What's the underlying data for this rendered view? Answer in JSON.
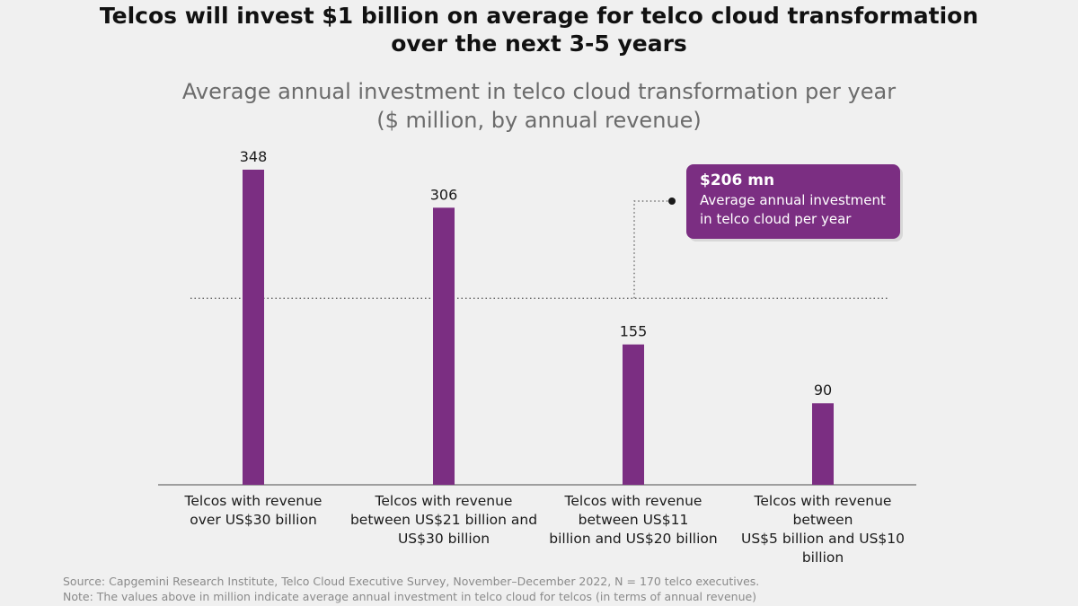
{
  "title_line1": "Telcos will invest $1 billion on average for telco cloud transformation",
  "title_line2": "over the next 3-5 years",
  "chart_data": {
    "type": "bar",
    "title": "Average annual investment in telco cloud transformation per year",
    "subtitle": "($ million, by annual revenue)",
    "categories": [
      [
        "Telcos with revenue",
        "over US$30 billion"
      ],
      [
        "Telcos with revenue",
        "between US$21 billion and",
        "US$30 billion"
      ],
      [
        "Telcos with revenue",
        "between US$11",
        "billion and US$20 billion"
      ],
      [
        "Telcos with revenue between",
        "US$5 billion and US$10 billion"
      ]
    ],
    "values": [
      348,
      306,
      155,
      90
    ],
    "value_labels": [
      "348",
      "306",
      "155",
      "90"
    ],
    "ylim": [
      0,
      348
    ],
    "bar_color": "#7b2e82",
    "reference_line": {
      "value": 206,
      "label_value": "$206 mn",
      "label_line1": "Average annual investment",
      "label_line2": "in telco cloud per year"
    }
  },
  "footer": {
    "source": "Source: Capgemini Research Institute, Telco Cloud Executive Survey, November–December 2022, N = 170 telco executives.",
    "note": "Note: The values above in million indicate average annual investment in telco cloud for telcos (in terms of annual revenue)"
  }
}
